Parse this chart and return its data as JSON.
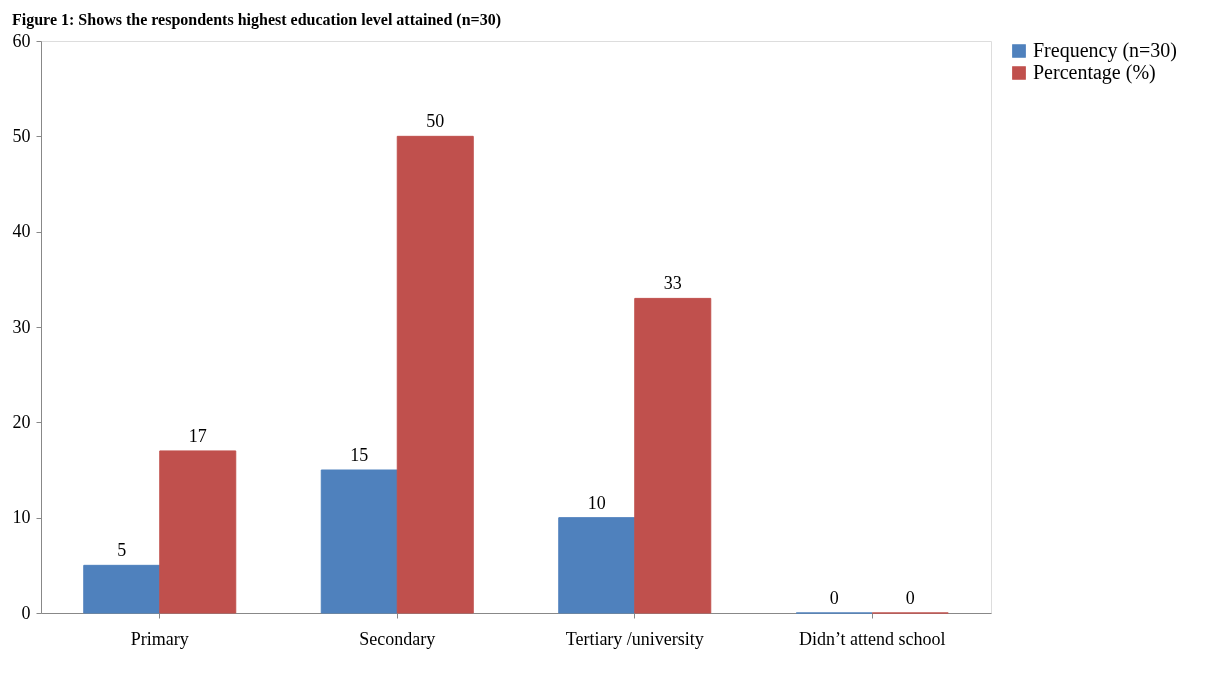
{
  "chart_data": {
    "type": "bar",
    "title": "Figure 1: Shows the respondents highest education level attained (n=30)",
    "categories": [
      "Primary",
      "Secondary",
      "Tertiary /university",
      "Didn’t attend school"
    ],
    "series": [
      {
        "name": "Frequency (n=30)",
        "color": "#4f81bd",
        "values": [
          5,
          15,
          10,
          0
        ]
      },
      {
        "name": "Percentage (%)",
        "color": "#c0504d",
        "values": [
          17,
          50,
          33,
          0
        ]
      }
    ],
    "ylim": [
      0,
      60
    ],
    "yticks": [
      0,
      10,
      20,
      30,
      40,
      50,
      60
    ],
    "grid": false,
    "legend": "right",
    "data_labels": true
  }
}
